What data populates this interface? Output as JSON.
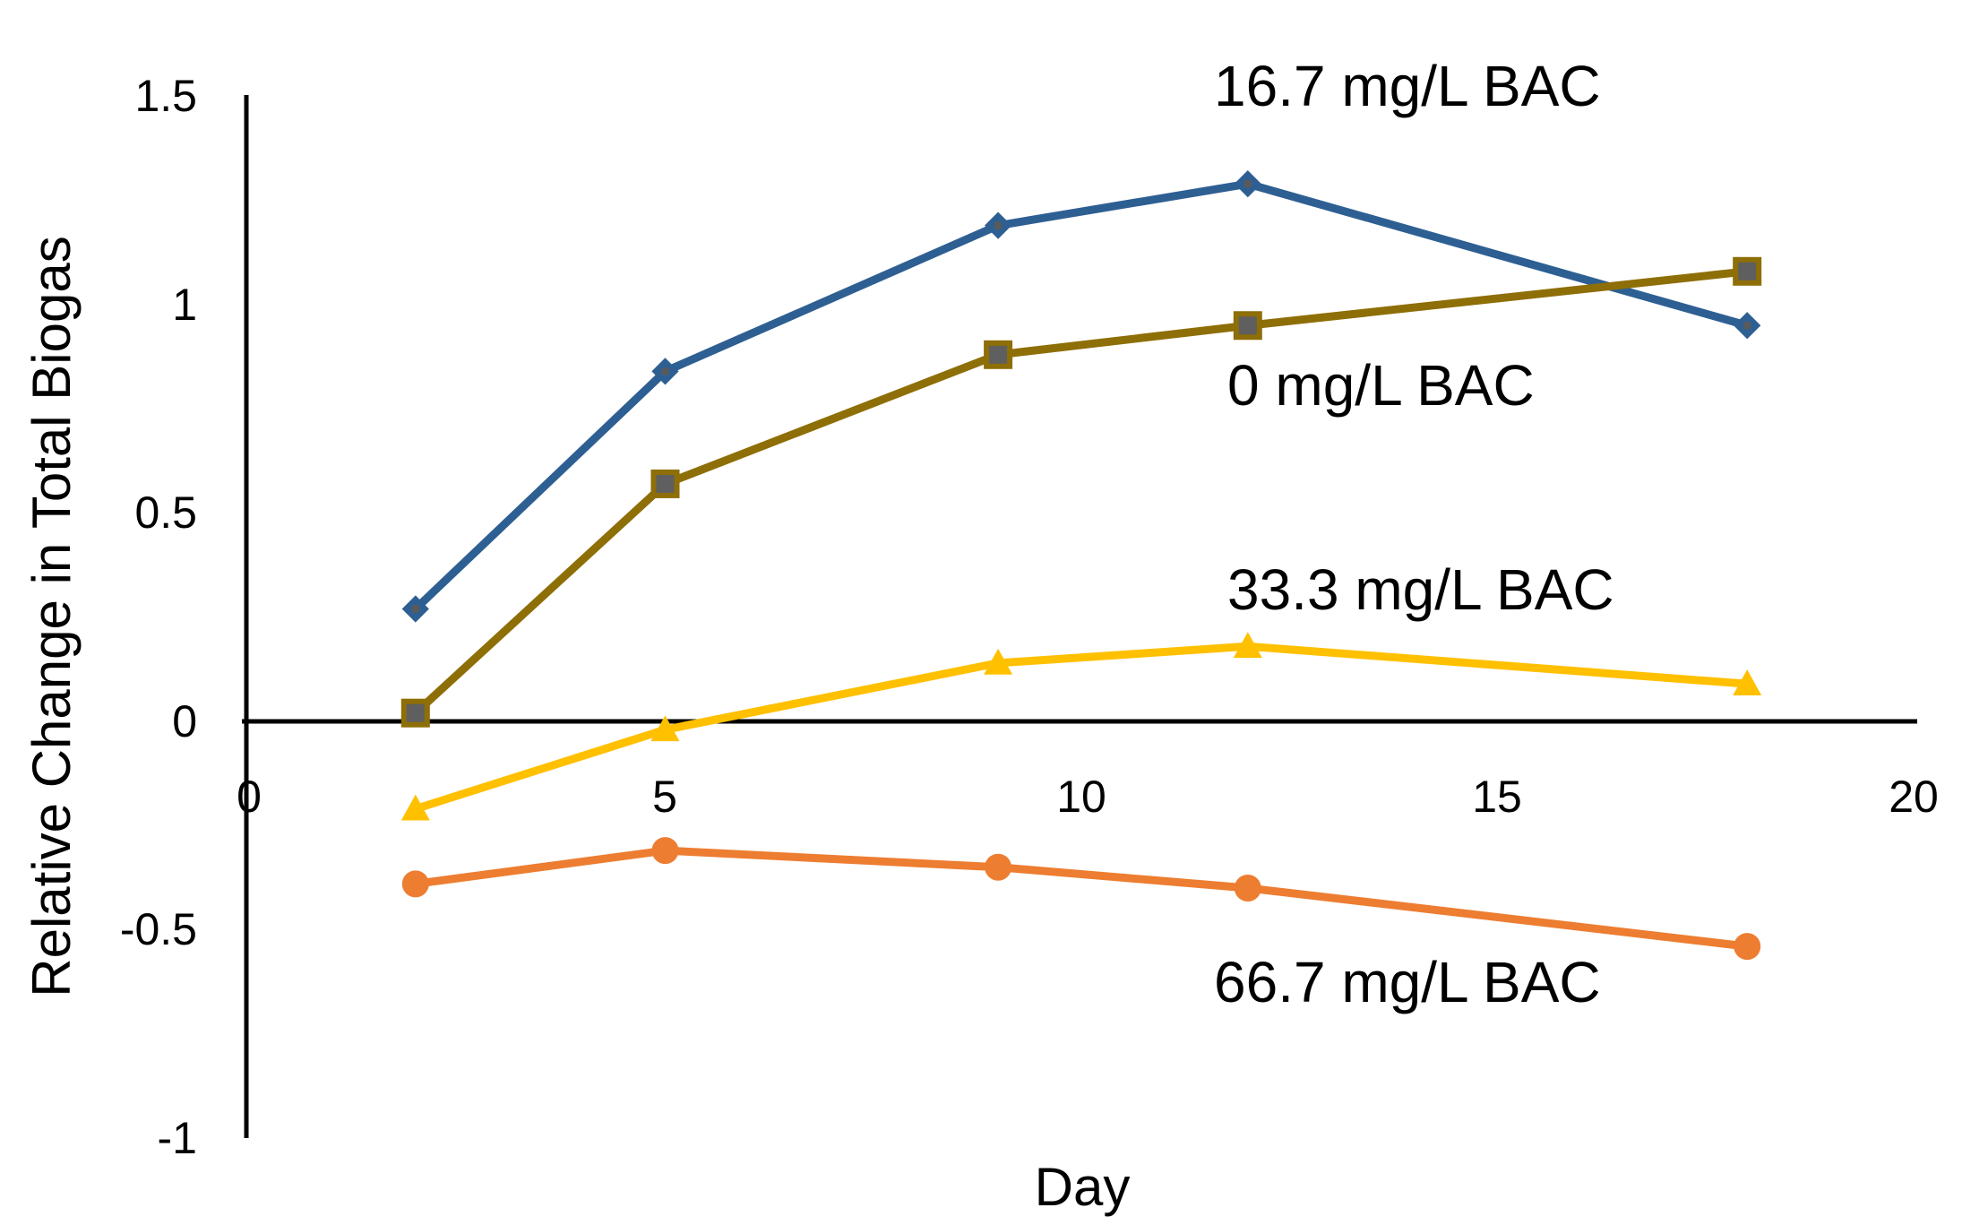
{
  "chart_data": {
    "type": "line",
    "title": "",
    "xlabel": "Day",
    "ylabel": "Relative Change in Total Biogas",
    "xlim": [
      0,
      20
    ],
    "ylim": [
      -1,
      1.5
    ],
    "x_ticks": [
      "0",
      "5",
      "10",
      "15",
      "20"
    ],
    "y_ticks": [
      "1.5",
      "1",
      "0.5",
      "0",
      "-0.5",
      "-1"
    ],
    "grid": false,
    "legend": "none (direct labels)",
    "x": [
      2,
      5,
      9,
      12,
      18
    ],
    "series": [
      {
        "name": "16.7 mg/L BAC",
        "color": "#2E5F92",
        "marker": "diamond",
        "values": [
          0.27,
          0.84,
          1.19,
          1.29,
          0.95
        ]
      },
      {
        "name": "0 mg/L BAC",
        "color": "#8E6E06",
        "marker": "square",
        "values": [
          0.02,
          0.57,
          0.88,
          0.95,
          1.08
        ]
      },
      {
        "name": "33.3 mg/L BAC",
        "color": "#FFC000",
        "marker": "triangle",
        "values": [
          -0.21,
          -0.02,
          0.14,
          0.18,
          0.09
        ]
      },
      {
        "name": "66.7 mg/L BAC",
        "color": "#ED7D31",
        "marker": "circle",
        "values": [
          -0.39,
          -0.31,
          -0.35,
          -0.4,
          -0.54
        ]
      }
    ]
  }
}
